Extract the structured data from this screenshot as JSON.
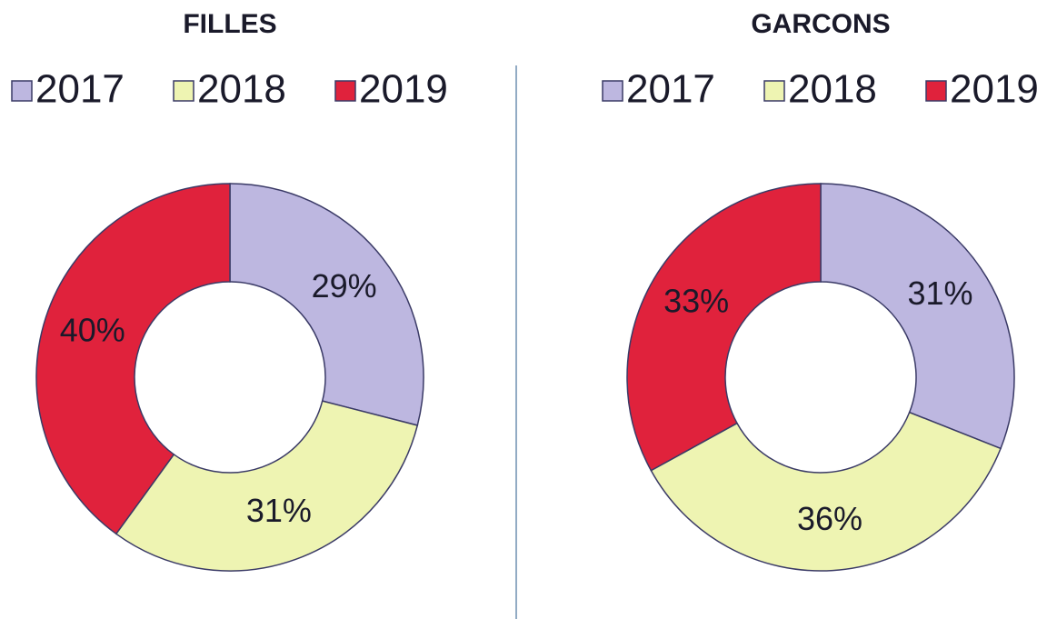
{
  "chart_data": [
    {
      "type": "donut",
      "title": "FILLES",
      "categories": [
        "2017",
        "2018",
        "2019"
      ],
      "values": [
        29,
        31,
        40
      ],
      "value_labels": [
        "29%",
        "31%",
        "40%"
      ],
      "colors": [
        "#bdb7e0",
        "#eef4b2",
        "#e0223c"
      ]
    },
    {
      "type": "donut",
      "title": "GARCONS",
      "categories": [
        "2017",
        "2018",
        "2019"
      ],
      "values": [
        31,
        36,
        33
      ],
      "value_labels": [
        "31%",
        "36%",
        "33%"
      ],
      "colors": [
        "#bdb7e0",
        "#eef4b2",
        "#e0223c"
      ]
    }
  ]
}
